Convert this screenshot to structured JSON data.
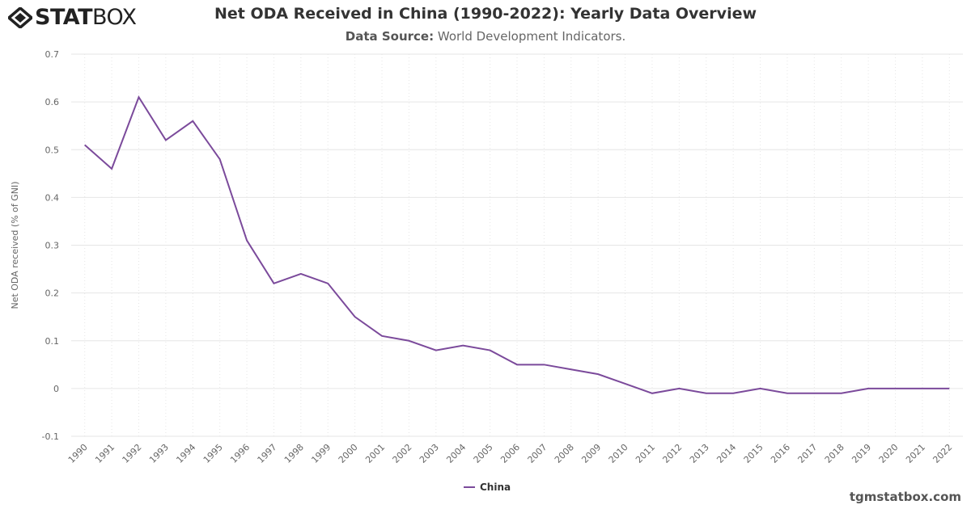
{
  "header": {
    "logo": "STATBOX",
    "title": "Net ODA Received in China (1990-2022): Yearly Data Overview",
    "source_label": "Data Source:",
    "source_value": "World Development Indicators."
  },
  "footer": {
    "site": "tgmstatbox.com"
  },
  "chart_data": {
    "type": "line",
    "title": "Net ODA Received in China (1990-2022): Yearly Data Overview",
    "ylabel": "Net ODA received (% of GNI)",
    "xlabel": "",
    "ylim": [
      -0.1,
      0.7
    ],
    "yticks": [
      -0.1,
      0,
      0.1,
      0.2,
      0.3,
      0.4,
      0.5,
      0.6,
      0.7
    ],
    "grid": true,
    "legend": "bottom-center",
    "color": "#7b4a9b",
    "categories": [
      "1990",
      "1991",
      "1992",
      "1993",
      "1994",
      "1995",
      "1996",
      "1997",
      "1998",
      "1999",
      "2000",
      "2001",
      "2002",
      "2003",
      "2004",
      "2005",
      "2006",
      "2007",
      "2008",
      "2009",
      "2010",
      "2011",
      "2012",
      "2013",
      "2014",
      "2015",
      "2016",
      "2017",
      "2018",
      "2019",
      "2020",
      "2021",
      "2022"
    ],
    "series": [
      {
        "name": "China",
        "values": [
          0.51,
          0.46,
          0.61,
          0.52,
          0.56,
          0.48,
          0.31,
          0.22,
          0.24,
          0.22,
          0.15,
          0.11,
          0.1,
          0.08,
          0.09,
          0.08,
          0.05,
          0.05,
          0.04,
          0.03,
          0.01,
          -0.01,
          0.0,
          -0.01,
          -0.01,
          0.0,
          -0.01,
          -0.01,
          -0.01,
          0.0,
          0.0,
          0.0,
          0.0
        ]
      }
    ]
  }
}
